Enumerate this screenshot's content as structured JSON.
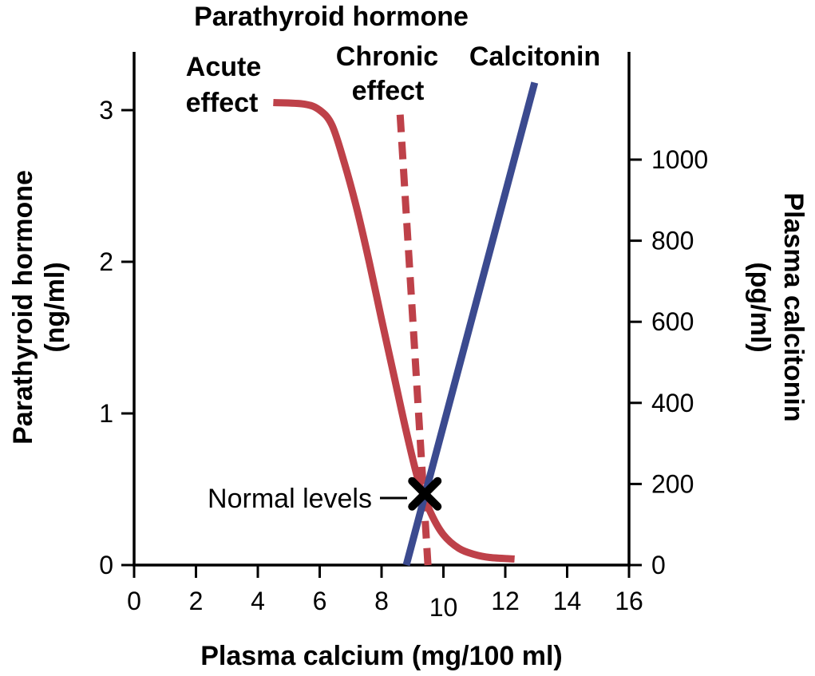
{
  "chart_data": {
    "type": "line",
    "title": "Parathyroid hormone",
    "xlabel": "Plasma calcium (mg/100 ml)",
    "ylabel_left": [
      "Parathyroid hormone",
      "(ng/ml)"
    ],
    "ylabel_right": [
      "Plasma calcitonin",
      "(pg/ml)"
    ],
    "xlim": [
      0,
      16
    ],
    "ylim_left": [
      0,
      3
    ],
    "ylim_right": [
      0,
      1000
    ],
    "x_ticks": [
      "0",
      "2",
      "4",
      "6",
      "8",
      "10",
      "12",
      "14",
      "16"
    ],
    "y_left_ticks": [
      "0",
      "1",
      "2",
      "3"
    ],
    "y_right_ticks": [
      "0",
      "200",
      "400",
      "600",
      "800",
      "1000"
    ],
    "series": [
      {
        "name": "Acute effect",
        "label_lines": [
          "Acute",
          "effect"
        ],
        "axis": "left",
        "style": "solid",
        "color": "#BE4149",
        "x": [
          4.5,
          5.5,
          6.0,
          6.4,
          6.8,
          7.2,
          7.6,
          8.0,
          8.4,
          8.8,
          9.2,
          9.6,
          10.0,
          10.5,
          11.0,
          11.5,
          12.3
        ],
        "y": [
          3.05,
          3.04,
          3.0,
          2.9,
          2.65,
          2.35,
          2.0,
          1.62,
          1.25,
          0.88,
          0.55,
          0.34,
          0.2,
          0.11,
          0.07,
          0.05,
          0.04
        ]
      },
      {
        "name": "Chronic effect",
        "label_lines": [
          "Chronic",
          "effect"
        ],
        "axis": "left",
        "style": "dashed",
        "color": "#BE4149",
        "x": [
          8.6,
          9.5
        ],
        "y": [
          2.97,
          0.0
        ]
      },
      {
        "name": "Calcitonin",
        "label_lines": [
          "Calcitonin"
        ],
        "axis": "right",
        "style": "solid",
        "color": "#3B4A8F",
        "x": [
          8.8,
          12.95
        ],
        "y": [
          0,
          1190
        ]
      }
    ],
    "annotations": [
      {
        "text": "Normal levels",
        "x": 9.4,
        "y": 0.47,
        "marker": "✖"
      }
    ],
    "grid": false,
    "legend": "none"
  }
}
